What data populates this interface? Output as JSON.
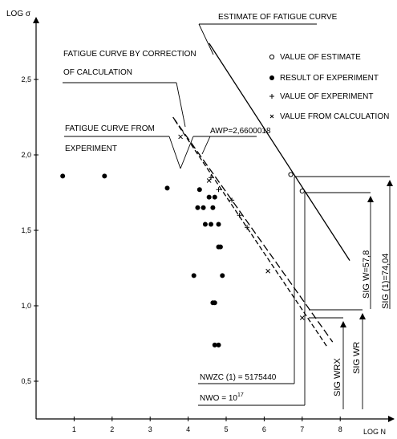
{
  "chart_data": {
    "type": "scatter",
    "title": "",
    "xlabel": "LOG N",
    "ylabel": "LOG σ",
    "xlim": [
      0,
      9.3
    ],
    "ylim": [
      0.25,
      2.95
    ],
    "x_ticks": [
      1,
      2,
      3,
      4,
      5,
      6,
      7,
      8
    ],
    "x_tick_labels": [
      "1",
      "2",
      "3",
      "4",
      "5",
      "6",
      "7",
      "8"
    ],
    "y_ticks": [
      0.5,
      1.0,
      1.5,
      2.0,
      2.5
    ],
    "y_tick_labels": [
      "0,5",
      "1,0",
      "1,5",
      "2,0",
      "2,5"
    ],
    "grid": false,
    "legend": {
      "position": "top-right",
      "entries": [
        {
          "marker": "open-circle",
          "label": "VALUE OF ESTIMATE"
        },
        {
          "marker": "filled-circle",
          "label": "RESULT OF EXPERIMENT"
        },
        {
          "marker": "plus",
          "label": "VALUE OF EXPERIMENT"
        },
        {
          "marker": "cross",
          "label": "VALUE FROM CALCULATION"
        }
      ]
    },
    "lines": [
      {
        "name": "ESTIMATE OF FATIGUE CURVE",
        "style": "solid",
        "points": [
          [
            4.55,
            2.74
          ],
          [
            8.25,
            1.3
          ]
        ]
      },
      {
        "name": "FATIGUE CURVE BY CORRECTION OF CALCULATION",
        "style": "dashed",
        "points": [
          [
            3.6,
            2.25
          ],
          [
            7.8,
            0.76
          ]
        ]
      },
      {
        "name": "FATIGUE CURVE FROM EXPERIMENT",
        "style": "dashed",
        "points": [
          [
            3.65,
            2.23
          ],
          [
            7.65,
            0.73
          ]
        ]
      }
    ],
    "series": [
      {
        "name": "RESULT OF EXPERIMENT",
        "marker": "filled-circle",
        "points": [
          [
            0.7,
            1.86
          ],
          [
            1.8,
            1.86
          ],
          [
            3.45,
            1.78
          ],
          [
            4.3,
            1.77
          ],
          [
            4.55,
            1.72
          ],
          [
            4.7,
            1.72
          ],
          [
            4.25,
            1.65
          ],
          [
            4.4,
            1.65
          ],
          [
            4.65,
            1.65
          ],
          [
            4.45,
            1.54
          ],
          [
            4.6,
            1.54
          ],
          [
            4.8,
            1.54
          ],
          [
            4.8,
            1.39
          ],
          [
            4.85,
            1.39
          ],
          [
            4.15,
            1.2
          ],
          [
            4.9,
            1.2
          ],
          [
            4.65,
            1.02
          ],
          [
            4.7,
            1.02
          ],
          [
            4.7,
            0.74
          ],
          [
            4.8,
            0.74
          ]
        ]
      },
      {
        "name": "VALUE OF EXPERIMENT",
        "marker": "plus",
        "points": [
          [
            4.6,
            1.85
          ],
          [
            4.8,
            1.77
          ],
          [
            5.15,
            1.7
          ],
          [
            5.35,
            1.6
          ],
          [
            5.55,
            1.52
          ]
        ]
      },
      {
        "name": "VALUE FROM CALCULATION",
        "marker": "cross",
        "points": [
          [
            3.8,
            2.12
          ],
          [
            4.55,
            1.83
          ],
          [
            6.1,
            1.23
          ],
          [
            7.0,
            0.92
          ]
        ]
      },
      {
        "name": "VALUE OF ESTIMATE",
        "marker": "open-circle",
        "points": [
          [
            6.7,
            1.87
          ],
          [
            7.0,
            1.76
          ]
        ]
      }
    ],
    "annotations": [
      {
        "id": "estimate",
        "text": "ESTIMATE OF FATIGUE CURVE"
      },
      {
        "id": "correction1",
        "text": "FATIGUE CURVE BY CORRECTION"
      },
      {
        "id": "correction2",
        "text": "OF CALCULATION"
      },
      {
        "id": "experiment1",
        "text": "FATIGUE CURVE FROM"
      },
      {
        "id": "experiment2",
        "text": "EXPERIMENT"
      },
      {
        "id": "awp",
        "text": "AWP=2,6600018"
      },
      {
        "id": "nwzc",
        "text": "NWZC  (1) = 5175440"
      },
      {
        "id": "nwo_base",
        "text": "NWO = 10"
      },
      {
        "id": "nwo_exp",
        "text": "17"
      },
      {
        "id": "sig_w",
        "text": "SIG W=57,8"
      },
      {
        "id": "sig_1",
        "text": "SIG (1)=74,04"
      },
      {
        "id": "sig_wrx",
        "text": "SIG WRX"
      },
      {
        "id": "sig_wr",
        "text": "SIG WR"
      }
    ]
  }
}
